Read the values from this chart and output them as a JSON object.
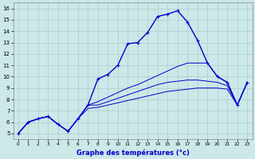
{
  "xlabel": "Graphe des températures (°c)",
  "xlim": [
    -0.5,
    23.5
  ],
  "ylim": [
    4.5,
    16.5
  ],
  "yticks": [
    5,
    6,
    7,
    8,
    9,
    10,
    11,
    12,
    13,
    14,
    15,
    16
  ],
  "xticks": [
    0,
    1,
    2,
    3,
    4,
    5,
    6,
    7,
    8,
    9,
    10,
    11,
    12,
    13,
    14,
    15,
    16,
    17,
    18,
    19,
    20,
    21,
    22,
    23
  ],
  "bg_color": "#cce8e8",
  "line_color": "#0000cc",
  "grid_color": "#aacece",
  "temp_main": [
    5.0,
    6.0,
    6.3,
    6.5,
    5.8,
    5.2,
    6.3,
    7.5,
    9.8,
    10.2,
    11.0,
    12.9,
    13.0,
    13.9,
    15.3,
    15.5,
    15.8,
    14.8,
    13.2,
    11.2,
    10.0,
    9.5,
    7.5,
    9.5
  ],
  "line_upper": [
    5.0,
    6.0,
    6.3,
    6.5,
    5.8,
    5.2,
    6.3,
    7.5,
    7.8,
    8.2,
    8.6,
    9.0,
    9.3,
    9.7,
    10.1,
    10.5,
    10.9,
    11.2,
    11.2,
    11.2,
    10.0,
    9.5,
    7.5,
    9.5
  ],
  "line_mid": [
    5.0,
    6.0,
    6.3,
    6.5,
    5.8,
    5.2,
    6.3,
    7.5,
    7.5,
    7.8,
    8.1,
    8.4,
    8.7,
    9.0,
    9.3,
    9.5,
    9.6,
    9.7,
    9.7,
    9.6,
    9.5,
    9.2,
    7.5,
    9.5
  ],
  "line_lower": [
    5.0,
    6.0,
    6.3,
    6.5,
    5.8,
    5.2,
    6.3,
    7.2,
    7.3,
    7.5,
    7.7,
    7.9,
    8.1,
    8.3,
    8.5,
    8.7,
    8.8,
    8.9,
    9.0,
    9.0,
    9.0,
    8.9,
    7.5,
    9.5
  ]
}
